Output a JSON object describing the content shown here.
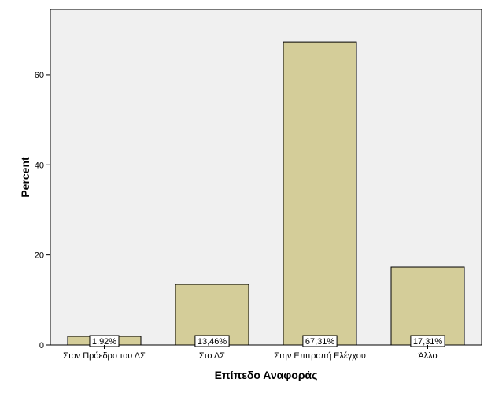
{
  "chart_data": {
    "type": "bar",
    "categories": [
      "Στον Πρόεδρο του ΔΣ",
      "Στο ΔΣ",
      "Στην Επιτροπή Ελέγχου",
      "Άλλο"
    ],
    "values": [
      1.92,
      13.46,
      67.31,
      17.31
    ],
    "data_labels": [
      "1,92%",
      "13,46%",
      "67,31%",
      "17,31%"
    ],
    "title": "",
    "xlabel": "Επίπεδο Αναφοράς",
    "ylabel": "Percent",
    "ylim": [
      0,
      74.5
    ],
    "yticks": [
      0,
      20,
      40,
      60
    ],
    "grid": false,
    "legend": "none",
    "colors": {
      "bar_fill": "#d4cd99",
      "bar_stroke": "#000000",
      "plot_background": "#f0f0f0",
      "label_box": "#ffffff"
    }
  }
}
